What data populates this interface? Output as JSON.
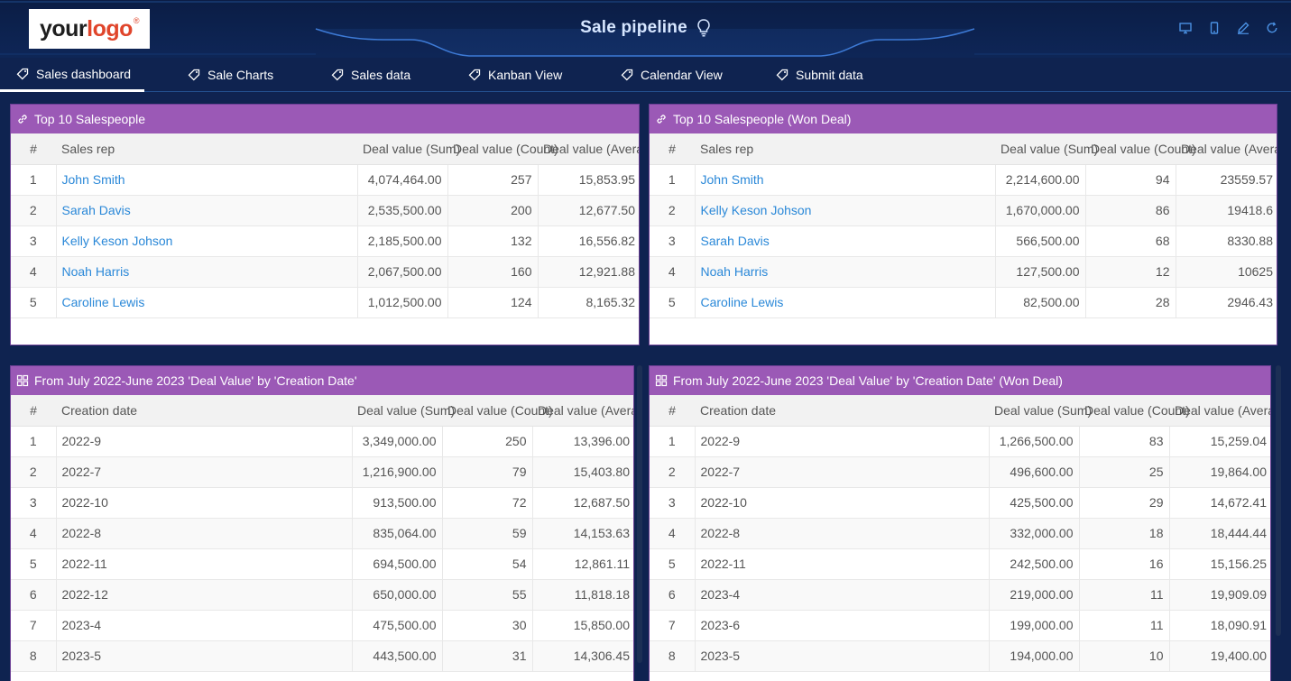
{
  "logo": {
    "part1": "your",
    "part2": "logo",
    "mark": "®"
  },
  "app": {
    "title": "Sale pipeline",
    "accent": "#9b59b6",
    "background": "#0f2350"
  },
  "toolbar_icons": [
    "desktop-icon",
    "mobile-icon",
    "edit-icon",
    "refresh-icon"
  ],
  "tabs": [
    {
      "label": "Sales dashboard",
      "active": true
    },
    {
      "label": "Sale Charts"
    },
    {
      "label": "Sales data"
    },
    {
      "label": "Kanban View"
    },
    {
      "label": "Calendar View"
    },
    {
      "label": "Submit data"
    }
  ],
  "panels": {
    "top_reps": {
      "title": "Top 10 Salespeople",
      "columns": [
        "#",
        "Sales rep",
        "Deal value (Sum)",
        "Deal value (Count)",
        "Deal value (Average)"
      ],
      "rows": [
        [
          "1",
          "John Smith",
          "4,074,464.00",
          "257",
          "15,853.95"
        ],
        [
          "2",
          "Sarah Davis",
          "2,535,500.00",
          "200",
          "12,677.50"
        ],
        [
          "3",
          "Kelly Keson Johson",
          "2,185,500.00",
          "132",
          "16,556.82"
        ],
        [
          "4",
          "Noah Harris",
          "2,067,500.00",
          "160",
          "12,921.88"
        ],
        [
          "5",
          "Caroline Lewis",
          "1,012,500.00",
          "124",
          "8,165.32"
        ]
      ]
    },
    "top_reps_won": {
      "title": "Top 10 Salespeople (Won Deal)",
      "columns": [
        "#",
        "Sales rep",
        "Deal value (Sum)",
        "Deal value (Count)",
        "Deal value (Average)"
      ],
      "rows": [
        [
          "1",
          "John Smith",
          "2,214,600.00",
          "94",
          "23559.57"
        ],
        [
          "2",
          "Kelly Keson Johson",
          "1,670,000.00",
          "86",
          "19418.6"
        ],
        [
          "3",
          "Sarah Davis",
          "566,500.00",
          "68",
          "8330.88"
        ],
        [
          "4",
          "Noah Harris",
          "127,500.00",
          "12",
          "10625"
        ],
        [
          "5",
          "Caroline Lewis",
          "82,500.00",
          "28",
          "2946.43"
        ]
      ]
    },
    "by_date": {
      "title": "From July 2022-June 2023 'Deal Value' by 'Creation Date'",
      "columns": [
        "#",
        "Creation date",
        "Deal value (Sum)",
        "Deal value (Count)",
        "Deal value (Average)"
      ],
      "rows": [
        [
          "1",
          "2022-9",
          "3,349,000.00",
          "250",
          "13,396.00"
        ],
        [
          "2",
          "2022-7",
          "1,216,900.00",
          "79",
          "15,403.80"
        ],
        [
          "3",
          "2022-10",
          "913,500.00",
          "72",
          "12,687.50"
        ],
        [
          "4",
          "2022-8",
          "835,064.00",
          "59",
          "14,153.63"
        ],
        [
          "5",
          "2022-11",
          "694,500.00",
          "54",
          "12,861.11"
        ],
        [
          "6",
          "2022-12",
          "650,000.00",
          "55",
          "11,818.18"
        ],
        [
          "7",
          "2023-4",
          "475,500.00",
          "30",
          "15,850.00"
        ],
        [
          "8",
          "2023-5",
          "443,500.00",
          "31",
          "14,306.45"
        ]
      ]
    },
    "by_date_won": {
      "title": "From July 2022-June 2023 'Deal Value' by 'Creation Date' (Won Deal)",
      "columns": [
        "#",
        "Creation date",
        "Deal value (Sum)",
        "Deal value (Count)",
        "Deal value (Average)"
      ],
      "rows": [
        [
          "1",
          "2022-9",
          "1,266,500.00",
          "83",
          "15,259.04"
        ],
        [
          "2",
          "2022-7",
          "496,600.00",
          "25",
          "19,864.00"
        ],
        [
          "3",
          "2022-10",
          "425,500.00",
          "29",
          "14,672.41"
        ],
        [
          "4",
          "2022-8",
          "332,000.00",
          "18",
          "18,444.44"
        ],
        [
          "5",
          "2022-11",
          "242,500.00",
          "16",
          "15,156.25"
        ],
        [
          "6",
          "2023-4",
          "219,000.00",
          "11",
          "19,909.09"
        ],
        [
          "7",
          "2023-6",
          "199,000.00",
          "11",
          "18,090.91"
        ],
        [
          "8",
          "2023-5",
          "194,000.00",
          "10",
          "19,400.00"
        ]
      ]
    }
  }
}
